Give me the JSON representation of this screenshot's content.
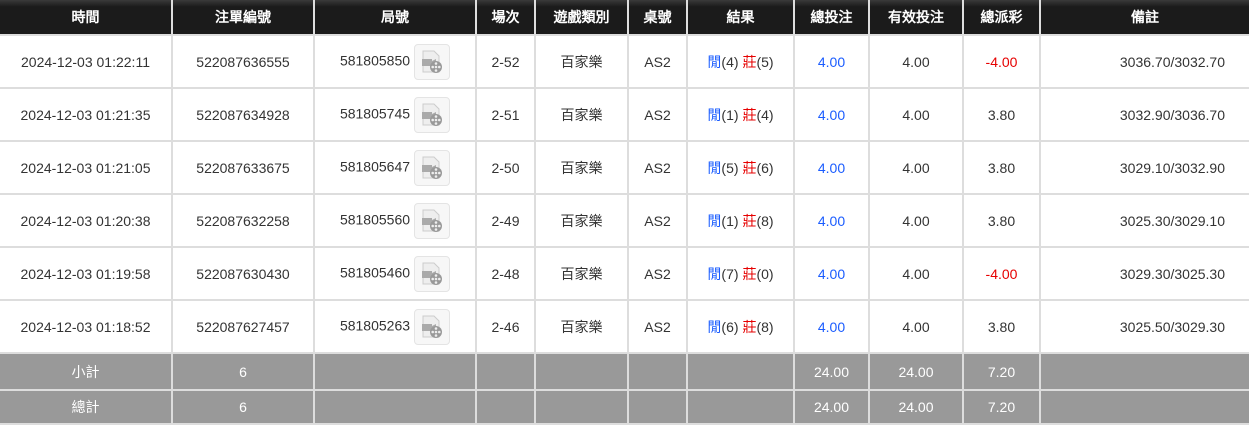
{
  "headers": [
    "時間",
    "注單編號",
    "局號",
    "場次",
    "遊戲類別",
    "桌號",
    "結果",
    "總投注",
    "有效投注",
    "總派彩",
    "備註"
  ],
  "colors": {
    "player": "#1a5cff",
    "banker": "#e60000",
    "negative": "#e60000",
    "bet": "#1a5cff"
  },
  "rows": [
    {
      "time": "2024-12-03 01:22:11",
      "bet_id": "522087636555",
      "round": "581805850",
      "shoe": "2-52",
      "game": "百家樂",
      "table": "AS2",
      "player": "閒",
      "player_score": "(4)",
      "banker": "莊",
      "banker_score": "(5)",
      "total_bet": "4.00",
      "valid_bet": "4.00",
      "payout": "-4.00",
      "negative": true,
      "remark": "3036.70/3032.70"
    },
    {
      "time": "2024-12-03 01:21:35",
      "bet_id": "522087634928",
      "round": "581805745",
      "shoe": "2-51",
      "game": "百家樂",
      "table": "AS2",
      "player": "閒",
      "player_score": "(1)",
      "banker": "莊",
      "banker_score": "(4)",
      "total_bet": "4.00",
      "valid_bet": "4.00",
      "payout": "3.80",
      "negative": false,
      "remark": "3032.90/3036.70"
    },
    {
      "time": "2024-12-03 01:21:05",
      "bet_id": "522087633675",
      "round": "581805647",
      "shoe": "2-50",
      "game": "百家樂",
      "table": "AS2",
      "player": "閒",
      "player_score": "(5)",
      "banker": "莊",
      "banker_score": "(6)",
      "total_bet": "4.00",
      "valid_bet": "4.00",
      "payout": "3.80",
      "negative": false,
      "remark": "3029.10/3032.90"
    },
    {
      "time": "2024-12-03 01:20:38",
      "bet_id": "522087632258",
      "round": "581805560",
      "shoe": "2-49",
      "game": "百家樂",
      "table": "AS2",
      "player": "閒",
      "player_score": "(1)",
      "banker": "莊",
      "banker_score": "(8)",
      "total_bet": "4.00",
      "valid_bet": "4.00",
      "payout": "3.80",
      "negative": false,
      "remark": "3025.30/3029.10"
    },
    {
      "time": "2024-12-03 01:19:58",
      "bet_id": "522087630430",
      "round": "581805460",
      "shoe": "2-48",
      "game": "百家樂",
      "table": "AS2",
      "player": "閒",
      "player_score": "(7)",
      "banker": "莊",
      "banker_score": "(0)",
      "total_bet": "4.00",
      "valid_bet": "4.00",
      "payout": "-4.00",
      "negative": true,
      "remark": "3029.30/3025.30"
    },
    {
      "time": "2024-12-03 01:18:52",
      "bet_id": "522087627457",
      "round": "581805263",
      "shoe": "2-46",
      "game": "百家樂",
      "table": "AS2",
      "player": "閒",
      "player_score": "(6)",
      "banker": "莊",
      "banker_score": "(8)",
      "total_bet": "4.00",
      "valid_bet": "4.00",
      "payout": "3.80",
      "negative": false,
      "remark": "3025.50/3029.30"
    }
  ],
  "subtotal": {
    "label": "小計",
    "count": "6",
    "total_bet": "24.00",
    "valid_bet": "24.00",
    "payout": "7.20"
  },
  "total": {
    "label": "總計",
    "count": "6",
    "total_bet": "24.00",
    "valid_bet": "24.00",
    "payout": "7.20"
  },
  "icons": {
    "replay": "video-replay-icon"
  }
}
